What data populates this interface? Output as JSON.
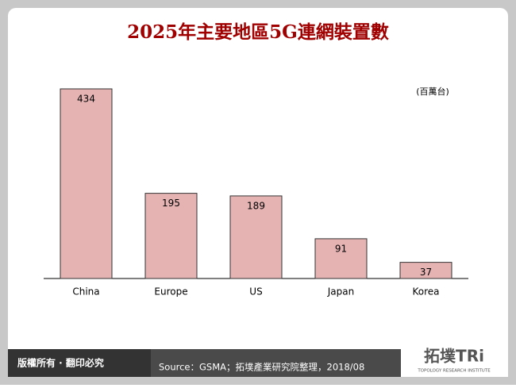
{
  "chart_data": {
    "type": "bar",
    "title": "2025年主要地區5G連網裝置數",
    "unit_label": "(百萬台)",
    "categories": [
      "China",
      "Europe",
      "US",
      "Japan",
      "Korea"
    ],
    "values": [
      434,
      195,
      189,
      91,
      37
    ],
    "color": "#e6b3b3"
  },
  "footer": {
    "copyright": "版權所有 · 翻印必究",
    "source": "Source：GSMA；拓墣產業研究院整理，2018/08",
    "logo": "拓墣TRi",
    "logo_subtitle": "TOPOLOGY RESEARCH INSTITUTE"
  }
}
